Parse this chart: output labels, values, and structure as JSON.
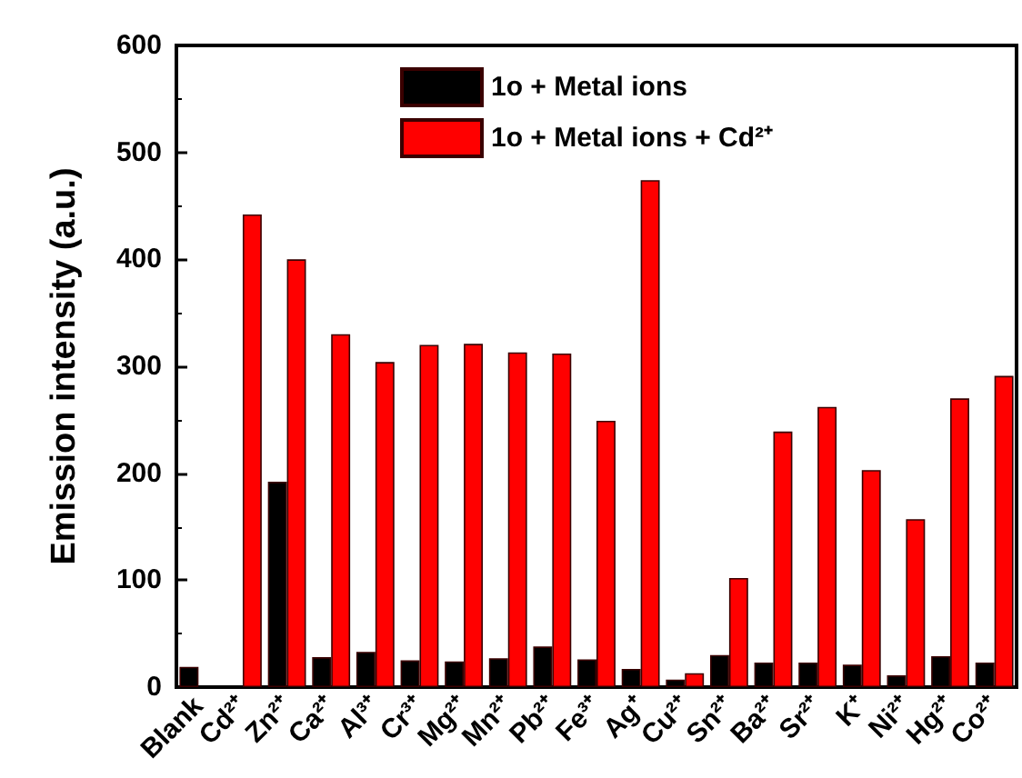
{
  "chart_data": {
    "type": "bar",
    "ylabel": "Emission intensity (a.u.)",
    "categories": [
      "Blank",
      "Cd²⁺",
      "Zn²⁺",
      "Ca²⁺",
      "Al³⁺",
      "Cr³⁺",
      "Mg²⁺",
      "Mn²⁺",
      "Pb²⁺",
      "Fe³⁺",
      "Ag⁺",
      "Cu²⁺",
      "Sn²⁺",
      "Ba²⁺",
      "Sr²⁺",
      "K⁺",
      "Ni²⁺",
      "Hg²⁺",
      "Co²⁺"
    ],
    "series": [
      {
        "name": "1o + Metal ions",
        "color": "#000000",
        "values": [
          19,
          null,
          192,
          28,
          33,
          25,
          24,
          27,
          38,
          26,
          17,
          7,
          30,
          23,
          23,
          21,
          11,
          29,
          23
        ]
      },
      {
        "name": "1o + Metal ions + Cd²⁺",
        "color": "#ff0000",
        "values": [
          null,
          442,
          400,
          330,
          304,
          320,
          321,
          313,
          312,
          249,
          474,
          13,
          102,
          239,
          262,
          203,
          157,
          270,
          291
        ]
      }
    ],
    "ylim": [
      0,
      600
    ],
    "yticks": [
      0,
      100,
      200,
      300,
      400,
      500,
      600
    ],
    "grid": false,
    "legend": "top"
  }
}
